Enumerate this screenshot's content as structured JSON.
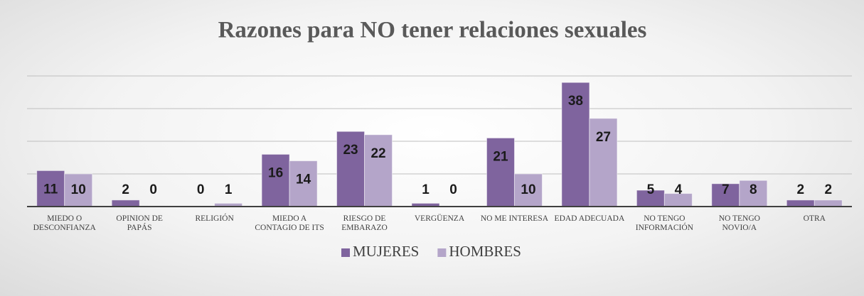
{
  "chart_data": {
    "type": "bar",
    "title": "Razones para NO tener relaciones sexuales",
    "categories": [
      "MIEDO O DESCONFIANZA",
      "OPINION DE PAPÁS",
      "RELIGIÓN",
      "MIEDO A CONTAGIO DE ITS",
      "RIESGO DE EMBARAZO",
      "VERGÜENZA",
      "NO ME INTERESA",
      "EDAD ADECUADA",
      "NO TENGO INFORMACIÓN",
      "NO TENGO NOVIO/A",
      "OTRA"
    ],
    "series": [
      {
        "name": "MUJERES",
        "color": "#7f649e",
        "values": [
          11,
          2,
          0,
          16,
          23,
          1,
          21,
          38,
          5,
          7,
          2
        ]
      },
      {
        "name": "HOMBRES",
        "color": "#b4a5c9",
        "values": [
          10,
          0,
          1,
          14,
          22,
          0,
          10,
          27,
          4,
          8,
          2
        ]
      }
    ],
    "ylim": [
      0,
      40
    ],
    "yticks": [
      0,
      10,
      20,
      30,
      40
    ],
    "grid": true,
    "legend": "bottom"
  }
}
